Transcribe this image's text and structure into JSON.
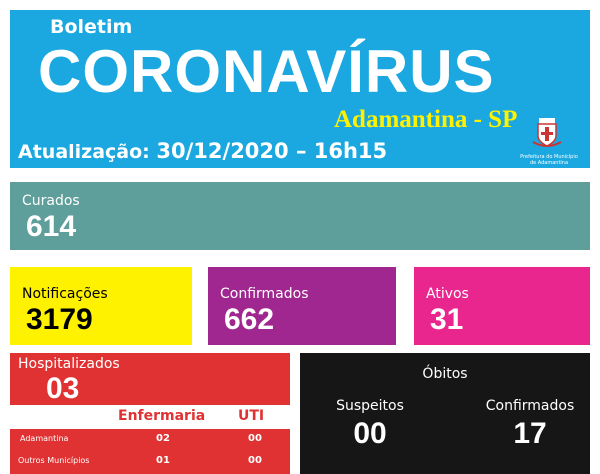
{
  "header": {
    "kicker": "Boletim",
    "title": "CORONAVÍRUS",
    "city": "Adamantina - SP",
    "update_label": "Atualização:",
    "update_value": "30/12/2020 – 16h15",
    "logo_text": "Prefeitura do Município de Adamantina",
    "logo_icon": "municipal-crest-icon"
  },
  "curados": {
    "label": "Curados",
    "value": "614"
  },
  "notificacoes": {
    "label": "Notificações",
    "value": "3179"
  },
  "confirmados": {
    "label": "Confirmados",
    "value": "662"
  },
  "ativos": {
    "label": "Ativos",
    "value": "31"
  },
  "hospitalizados": {
    "label": "Hospitalizados",
    "value": "03",
    "columns": [
      "Enfermaria",
      "UTI"
    ],
    "rows": [
      {
        "name": "Adamantina",
        "enfermaria": "02",
        "uti": "00"
      },
      {
        "name": "Outros Municípios",
        "enfermaria": "01",
        "uti": "00"
      }
    ]
  },
  "obitos": {
    "title": "Óbitos",
    "suspeitos_label": "Suspeitos",
    "suspeitos_value": "00",
    "confirmados_label": "Confirmados",
    "confirmados_value": "17"
  },
  "colors": {
    "header": "#1ba8e0",
    "curados": "#5f9f9b",
    "notificacoes": "#fef200",
    "confirmados": "#a0278f",
    "ativos": "#e9268e",
    "hospitalizados": "#e03232",
    "obitos": "#161616"
  }
}
